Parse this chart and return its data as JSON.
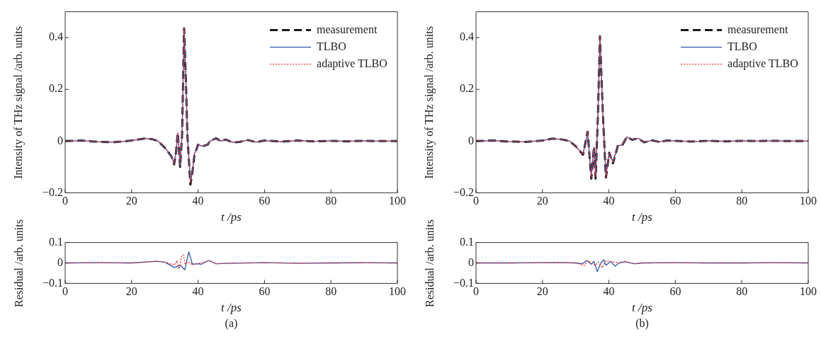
{
  "chart_data": [
    {
      "type": "line",
      "xlabel": "t /ps",
      "ylabel": "Intensity of THz signal /arb. units",
      "xlim": [
        0,
        100
      ],
      "xticks": [
        0,
        20,
        40,
        60,
        80,
        100
      ],
      "ylim": [
        -0.2,
        0.5
      ],
      "yticks": [
        -0.2,
        0,
        0.2,
        0.4
      ],
      "legend": "top right",
      "marker": "none",
      "series": [
        {
          "name": "measurement",
          "color": "#1a1a1a",
          "line_style": "dashed",
          "x": [
            0,
            5,
            10,
            15,
            20,
            24,
            26,
            28,
            30.3,
            32,
            32.8,
            33.3,
            33.9,
            34.6,
            35.2,
            35.8,
            36.3,
            36.8,
            37.7,
            38.3,
            38.9,
            40,
            41.4,
            42.9,
            43.6,
            45.4,
            46.8,
            48.3,
            50.4,
            52.5,
            55,
            57.5,
            60,
            65,
            70,
            75,
            80,
            85,
            90,
            95,
            100
          ],
          "values": [
            0,
            0.002,
            -0.003,
            -0.004,
            0.002,
            0.01,
            0.008,
            0,
            -0.03,
            -0.06,
            -0.09,
            -0.05,
            0.032,
            -0.1,
            0.027,
            0.436,
            0.25,
            0.02,
            -0.168,
            -0.12,
            -0.055,
            -0.014,
            -0.02,
            -0.014,
            0,
            0.011,
            0,
            0.006,
            -0.005,
            -0.003,
            0.004,
            -0.004,
            0.002,
            -0.002,
            0.002,
            -0.001,
            0.001,
            -0.001,
            0.001,
            0,
            0
          ]
        },
        {
          "name": "TLBO",
          "color": "#2e56a8",
          "line_style": "solid",
          "x": [
            0,
            5,
            10,
            15,
            20,
            24,
            26,
            28,
            30.3,
            32,
            32.8,
            33.3,
            33.9,
            34.6,
            35.2,
            35.8,
            36.3,
            36.8,
            37.7,
            38.3,
            38.9,
            40,
            41.4,
            42.9,
            43.6,
            45.4,
            46.8,
            48.3,
            50.4,
            52.5,
            55,
            57.5,
            60,
            65,
            70,
            75,
            80,
            85,
            90,
            95,
            100
          ],
          "values": [
            0,
            0.002,
            -0.003,
            -0.004,
            0.002,
            0.01,
            0.008,
            0,
            -0.03,
            -0.06,
            -0.085,
            -0.05,
            0.03,
            -0.095,
            0.025,
            0.43,
            0.25,
            0.02,
            -0.155,
            -0.12,
            -0.05,
            -0.014,
            -0.02,
            -0.014,
            0,
            0.011,
            0,
            0.006,
            -0.005,
            -0.003,
            0.004,
            -0.004,
            0.002,
            -0.002,
            0.002,
            -0.001,
            0.001,
            -0.001,
            0.001,
            0,
            0
          ]
        },
        {
          "name": "adaptive TLBO",
          "color": "#e8383d",
          "line_style": "dotted",
          "x": [
            0,
            5,
            10,
            15,
            20,
            24,
            26,
            28,
            30.3,
            32,
            32.8,
            33.3,
            33.9,
            34.6,
            35.2,
            35.8,
            36.3,
            36.8,
            37.7,
            38.3,
            38.9,
            40,
            41.4,
            42.9,
            43.6,
            45.4,
            46.8,
            48.3,
            50.4,
            52.5,
            55,
            57.5,
            60,
            65,
            70,
            75,
            80,
            85,
            90,
            95,
            100
          ],
          "values": [
            0,
            0.002,
            -0.003,
            -0.004,
            0.002,
            0.01,
            0.008,
            0,
            -0.03,
            -0.06,
            -0.088,
            -0.05,
            0.032,
            -0.09,
            0.027,
            0.44,
            0.25,
            0.02,
            -0.16,
            -0.12,
            -0.052,
            -0.014,
            -0.02,
            -0.014,
            0,
            0.011,
            0,
            0.006,
            -0.005,
            -0.003,
            0.004,
            -0.004,
            0.002,
            -0.002,
            0.002,
            -0.001,
            0.001,
            -0.001,
            0.001,
            0,
            0
          ]
        }
      ]
    },
    {
      "type": "line",
      "xlabel": "t /ps",
      "ylabel": "Residual /arb. units",
      "xlim": [
        0,
        100
      ],
      "xticks": [
        0,
        20,
        40,
        60,
        80,
        100
      ],
      "ylim": [
        -0.1,
        0.1
      ],
      "yticks": [
        -0.1,
        0,
        0.1
      ],
      "marker": "none",
      "annotations": [
        "(a)"
      ],
      "series": [
        {
          "color": "#2e56a8",
          "line_style": "solid",
          "x": [
            0,
            10,
            20,
            27.5,
            30,
            32.9,
            34.7,
            36,
            37.2,
            38.3,
            39.7,
            41,
            43.3,
            45.4,
            50,
            60,
            70,
            80,
            90,
            100
          ],
          "values": [
            0,
            0.001,
            0,
            0.008,
            0.004,
            -0.022,
            -0.012,
            -0.033,
            0.054,
            -0.006,
            -0.004,
            -0.006,
            0.012,
            -0.004,
            -0.001,
            0.001,
            -0.001,
            0,
            0.001,
            0
          ]
        },
        {
          "color": "#e8383d",
          "line_style": "dotted",
          "x": [
            0,
            10,
            20,
            27.5,
            30,
            32.9,
            33.6,
            34.3,
            35.1,
            35.6,
            36.1,
            37,
            38.3,
            39.7,
            43.3,
            45.4,
            50,
            60,
            70,
            80,
            90,
            100
          ],
          "values": [
            0,
            0.001,
            0,
            0.008,
            0.004,
            -0.01,
            0.012,
            -0.03,
            0.036,
            0.04,
            -0.006,
            0.005,
            -0.008,
            -0.004,
            0.012,
            -0.004,
            -0.001,
            0.001,
            -0.001,
            0,
            0.001,
            0
          ]
        }
      ]
    },
    {
      "type": "line",
      "xlabel": "t /ps",
      "ylabel": "Intensity of THz signal /arb. units",
      "xlim": [
        0,
        100
      ],
      "xticks": [
        0,
        20,
        40,
        60,
        80,
        100
      ],
      "ylim": [
        -0.2,
        0.5
      ],
      "yticks": [
        -0.2,
        0,
        0.2,
        0.4
      ],
      "legend": "top right",
      "marker": "none",
      "series": [
        {
          "name": "measurement",
          "color": "#1a1a1a",
          "line_style": "dashed",
          "x": [
            0,
            5,
            10,
            15,
            20,
            23,
            26,
            28.2,
            30,
            32.2,
            33.6,
            34.7,
            35.5,
            36,
            36.7,
            37.3,
            38.2,
            39.1,
            40.1,
            41.2,
            42.7,
            44.1,
            45.4,
            47,
            48.8,
            50.6,
            53,
            55,
            57.5,
            60,
            65,
            70,
            75,
            80,
            85,
            90,
            95,
            100
          ],
          "values": [
            0,
            0.002,
            -0.002,
            -0.003,
            0.002,
            0.01,
            0.006,
            0,
            -0.02,
            -0.053,
            0.036,
            -0.145,
            -0.023,
            -0.145,
            0.1,
            0.405,
            0.1,
            -0.141,
            -0.045,
            -0.086,
            -0.018,
            -0.014,
            0.016,
            0.005,
            0.011,
            -0.005,
            0.003,
            -0.003,
            0.002,
            0.001,
            -0.002,
            0.001,
            -0.001,
            0.001,
            0,
            0.001,
            0,
            0
          ]
        },
        {
          "name": "TLBO",
          "color": "#2e56a8",
          "line_style": "solid",
          "x": [
            0,
            5,
            10,
            15,
            20,
            23,
            26,
            28.2,
            30,
            32.2,
            33.6,
            34.7,
            35.5,
            36,
            36.7,
            37.3,
            38.2,
            39.1,
            40.1,
            41.2,
            42.7,
            44.1,
            45.4,
            47,
            48.8,
            50.6,
            53,
            55,
            57.5,
            60,
            65,
            70,
            75,
            80,
            85,
            90,
            95,
            100
          ],
          "values": [
            0,
            0.002,
            -0.002,
            -0.003,
            0.002,
            0.01,
            0.006,
            0,
            -0.02,
            -0.05,
            0.03,
            -0.135,
            -0.023,
            -0.13,
            0.1,
            0.4,
            0.1,
            -0.13,
            -0.045,
            -0.08,
            -0.018,
            -0.014,
            0.016,
            0.005,
            0.011,
            -0.005,
            0.003,
            -0.003,
            0.002,
            0.001,
            -0.002,
            0.001,
            -0.001,
            0.001,
            0,
            0.001,
            0,
            0
          ]
        },
        {
          "name": "adaptive TLBO",
          "color": "#e8383d",
          "line_style": "dotted",
          "x": [
            0,
            5,
            10,
            15,
            20,
            23,
            26,
            28.2,
            30,
            32.2,
            33.6,
            34.7,
            35.5,
            36,
            36.7,
            37.3,
            38.2,
            39.1,
            40.1,
            41.2,
            42.7,
            44.1,
            45.4,
            47,
            48.8,
            50.6,
            53,
            55,
            57.5,
            60,
            65,
            70,
            75,
            80,
            85,
            90,
            95,
            100
          ],
          "values": [
            0,
            0.002,
            -0.002,
            -0.003,
            0.002,
            0.01,
            0.006,
            0,
            -0.02,
            -0.052,
            0.035,
            -0.14,
            -0.023,
            -0.14,
            0.1,
            0.41,
            0.1,
            -0.14,
            -0.045,
            -0.084,
            -0.018,
            -0.014,
            0.016,
            0.005,
            0.011,
            -0.005,
            0.003,
            -0.003,
            0.002,
            0.001,
            -0.002,
            0.001,
            -0.001,
            0.001,
            0,
            0.001,
            0,
            0
          ]
        }
      ]
    },
    {
      "type": "line",
      "xlabel": "t /ps",
      "ylabel": "Residual /arb. units",
      "xlim": [
        0,
        100
      ],
      "xticks": [
        0,
        20,
        40,
        60,
        80,
        100
      ],
      "ylim": [
        -0.1,
        0.1
      ],
      "yticks": [
        -0.1,
        0,
        0.1
      ],
      "marker": "none",
      "annotations": [
        "(b)"
      ],
      "series": [
        {
          "color": "#2e56a8",
          "line_style": "solid",
          "x": [
            0,
            10,
            20,
            25,
            30,
            32,
            33.3,
            34.7,
            35.5,
            36.5,
            37.6,
            38.4,
            39.1,
            40.5,
            41.9,
            43,
            44.8,
            47.7,
            50,
            60,
            70,
            80,
            90,
            100
          ],
          "values": [
            0,
            0,
            0.001,
            0.002,
            0,
            -0.004,
            0.012,
            -0.006,
            0.008,
            -0.042,
            0,
            0.016,
            -0.012,
            0.008,
            -0.016,
            0,
            0.006,
            -0.004,
            0,
            0.001,
            0,
            0,
            0.001,
            0
          ]
        },
        {
          "color": "#e8383d",
          "line_style": "dotted",
          "x": [
            0,
            10,
            20,
            25,
            30,
            32.6,
            33.7,
            34.7,
            35.8,
            36.9,
            38,
            39,
            41.2,
            43,
            44.8,
            47.7,
            50,
            60,
            70,
            80,
            90,
            100
          ],
          "values": [
            0,
            0,
            0.001,
            0.002,
            0,
            -0.012,
            0.012,
            0,
            -0.012,
            0.004,
            -0.024,
            0.01,
            0.006,
            0,
            0.008,
            -0.004,
            0,
            0.001,
            0,
            0,
            0.001,
            0
          ]
        }
      ]
    }
  ]
}
